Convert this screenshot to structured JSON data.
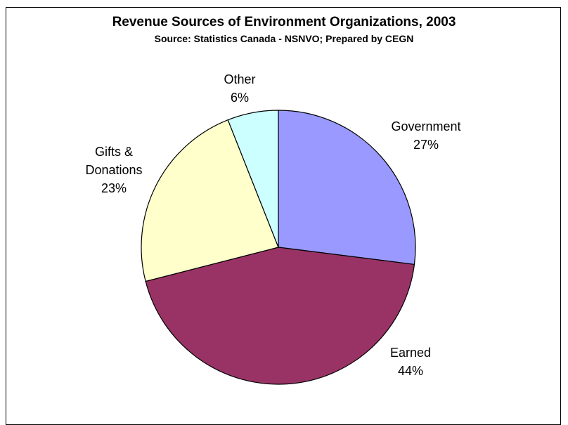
{
  "chart_data": {
    "type": "pie",
    "title": "Revenue Sources of Environment Organizations, 2003",
    "subtitle": "Source:  Statistics Canada - NSNVO; Prepared by CEGN",
    "slices": [
      {
        "label": "Government",
        "percent_label": "27%",
        "value": 27,
        "color": "#9999ff"
      },
      {
        "label": "Earned",
        "percent_label": "44%",
        "value": 44,
        "color": "#993366"
      },
      {
        "label": "Gifts & Donations",
        "label_lines": [
          "Gifts &",
          "Donations"
        ],
        "percent_label": "23%",
        "value": 23,
        "color": "#ffffcc"
      },
      {
        "label": "Other",
        "percent_label": "6%",
        "value": 6,
        "color": "#ccffff"
      }
    ],
    "start": "top",
    "direction": "clockwise",
    "legend": "none"
  }
}
